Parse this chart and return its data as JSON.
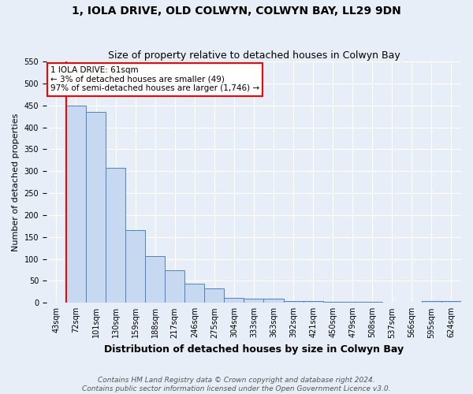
{
  "title": "1, IOLA DRIVE, OLD COLWYN, COLWYN BAY, LL29 9DN",
  "subtitle": "Size of property relative to detached houses in Colwyn Bay",
  "xlabel": "Distribution of detached houses by size in Colwyn Bay",
  "ylabel": "Number of detached properties",
  "footer_line1": "Contains HM Land Registry data © Crown copyright and database right 2024.",
  "footer_line2": "Contains public sector information licensed under the Open Government Licence v3.0.",
  "categories": [
    "43sqm",
    "72sqm",
    "101sqm",
    "130sqm",
    "159sqm",
    "188sqm",
    "217sqm",
    "246sqm",
    "275sqm",
    "304sqm",
    "333sqm",
    "363sqm",
    "392sqm",
    "421sqm",
    "450sqm",
    "479sqm",
    "508sqm",
    "537sqm",
    "566sqm",
    "595sqm",
    "624sqm"
  ],
  "values": [
    0,
    449,
    435,
    307,
    165,
    107,
    74,
    44,
    32,
    11,
    9,
    9,
    5,
    4,
    2,
    2,
    2,
    1,
    1,
    5,
    4
  ],
  "bar_color": "#c6d9f0",
  "bar_edge_color": "#4f81bd",
  "annotation_box_text_line1": "1 IOLA DRIVE: 61sqm",
  "annotation_box_text_line2": "← 3% of detached houses are smaller (49)",
  "annotation_box_text_line3": "97% of semi-detached houses are larger (1,746) →",
  "annotation_box_edge_color": "red",
  "annotation_box_face_color": "white",
  "vline_color": "red",
  "vline_x": 0.5,
  "ylim": [
    0,
    550
  ],
  "yticks": [
    0,
    50,
    100,
    150,
    200,
    250,
    300,
    350,
    400,
    450,
    500,
    550
  ],
  "background_color": "#e8eef8",
  "plot_bg_color": "#e8eef8",
  "title_fontsize": 10,
  "subtitle_fontsize": 9,
  "ylabel_fontsize": 8,
  "xlabel_fontsize": 9,
  "tick_fontsize": 7,
  "footer_fontsize": 6.5
}
